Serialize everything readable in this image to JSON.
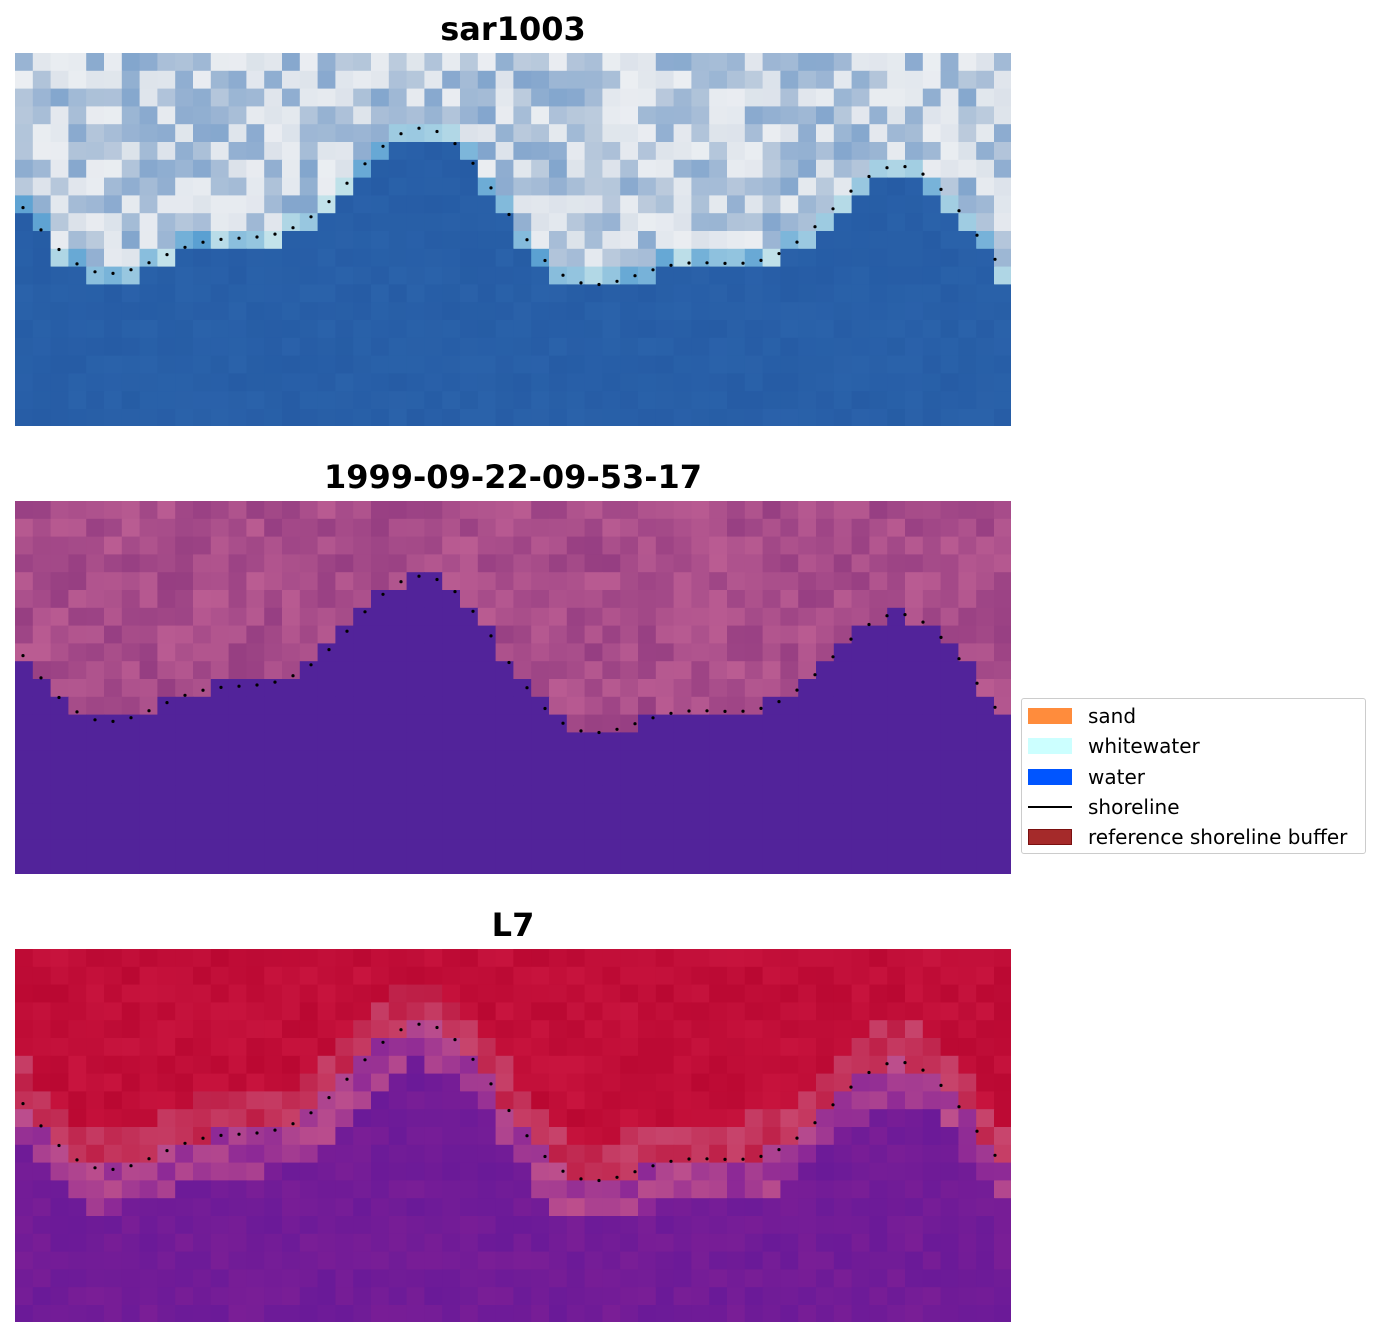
{
  "panels": [
    {
      "title": "sar1003",
      "palette": "rgb"
    },
    {
      "title": "1999-09-22-09-53-17",
      "palette": "classified"
    },
    {
      "title": "L7",
      "palette": "index"
    }
  ],
  "legend": {
    "items": [
      {
        "label": "sand",
        "type": "patch",
        "color": "#ff8c3c",
        "edge": "#ff8c3c"
      },
      {
        "label": "whitewater",
        "type": "patch",
        "color": "#ccffff",
        "edge": "#ccffff"
      },
      {
        "label": "water",
        "type": "patch",
        "color": "#0055ff",
        "edge": "#0055ff"
      },
      {
        "label": "shoreline",
        "type": "line",
        "color": "#000000"
      },
      {
        "label": "reference shoreline buffer",
        "type": "patch",
        "color": "#a52a2a",
        "edge": "#7a1010"
      }
    ]
  },
  "colors": {
    "water_class": "#52239a",
    "sand_tone": "#b3578c",
    "index_land": "#bd0b35",
    "index_water": "#6a1a98",
    "rgb_water": "#2a62aa",
    "rgb_land": "#c8d3e0"
  }
}
